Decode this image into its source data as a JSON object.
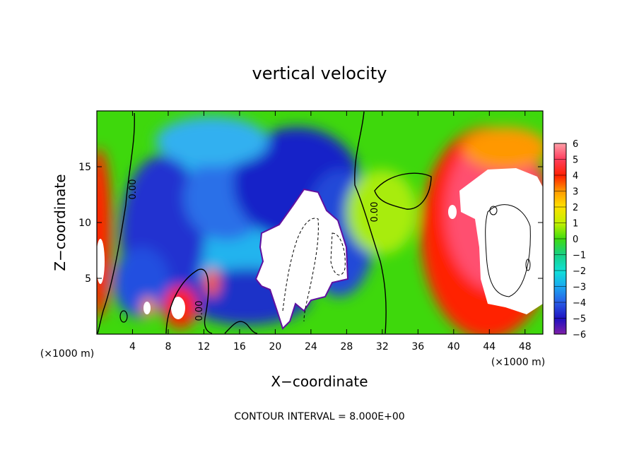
{
  "chart_data": {
    "type": "heatmap",
    "title": "vertical velocity",
    "xlabel": "X−coordinate",
    "ylabel": "Z−coordinate",
    "x_unit_label": "(×1000 m)",
    "x_unit_label_right": "(×1000 m)",
    "xlim": [
      0,
      50
    ],
    "ylim": [
      0,
      20
    ],
    "xticks": [
      4,
      8,
      12,
      16,
      20,
      24,
      28,
      32,
      36,
      40,
      44,
      48
    ],
    "yticks": [
      5,
      10,
      15
    ],
    "contour_interval_note": "CONTOUR INTERVAL = 8.000E+00",
    "contour_labels": [
      "0.00",
      "0.00",
      "0.00"
    ],
    "colorbar": {
      "ticks": [
        6,
        5,
        4,
        3,
        2,
        1,
        0,
        -1,
        -2,
        -3,
        -4,
        -5,
        -6
      ],
      "tick_labels": [
        "6",
        "5",
        "4",
        "3",
        "2",
        "1",
        "0",
        "−1",
        "−2",
        "−3",
        "−4",
        "−5",
        "−6"
      ],
      "range": [
        -6,
        6
      ],
      "colors": [
        "#7f1fa8",
        "#2010c0",
        "#2860e8",
        "#1aa8f0",
        "#10e0d8",
        "#18d080",
        "#40dc10",
        "#c0f000",
        "#ffe000",
        "#ff9800",
        "#ff2000",
        "#ff4060",
        "#ffa0a8"
      ]
    },
    "features": [
      {
        "name": "downdraft",
        "x": 10,
        "z": 13,
        "value": -4
      },
      {
        "name": "downdraft",
        "x": 24,
        "z": 13,
        "value": -5
      },
      {
        "name": "updraft core",
        "x": 24,
        "z": 8,
        "value": 8
      },
      {
        "name": "updraft",
        "x": 9.5,
        "z": 2,
        "value": 6
      },
      {
        "name": "updraft",
        "x": 45,
        "z": 8,
        "value": 8
      },
      {
        "name": "updraft",
        "x": 0.5,
        "z": 8,
        "value": 6
      }
    ]
  }
}
